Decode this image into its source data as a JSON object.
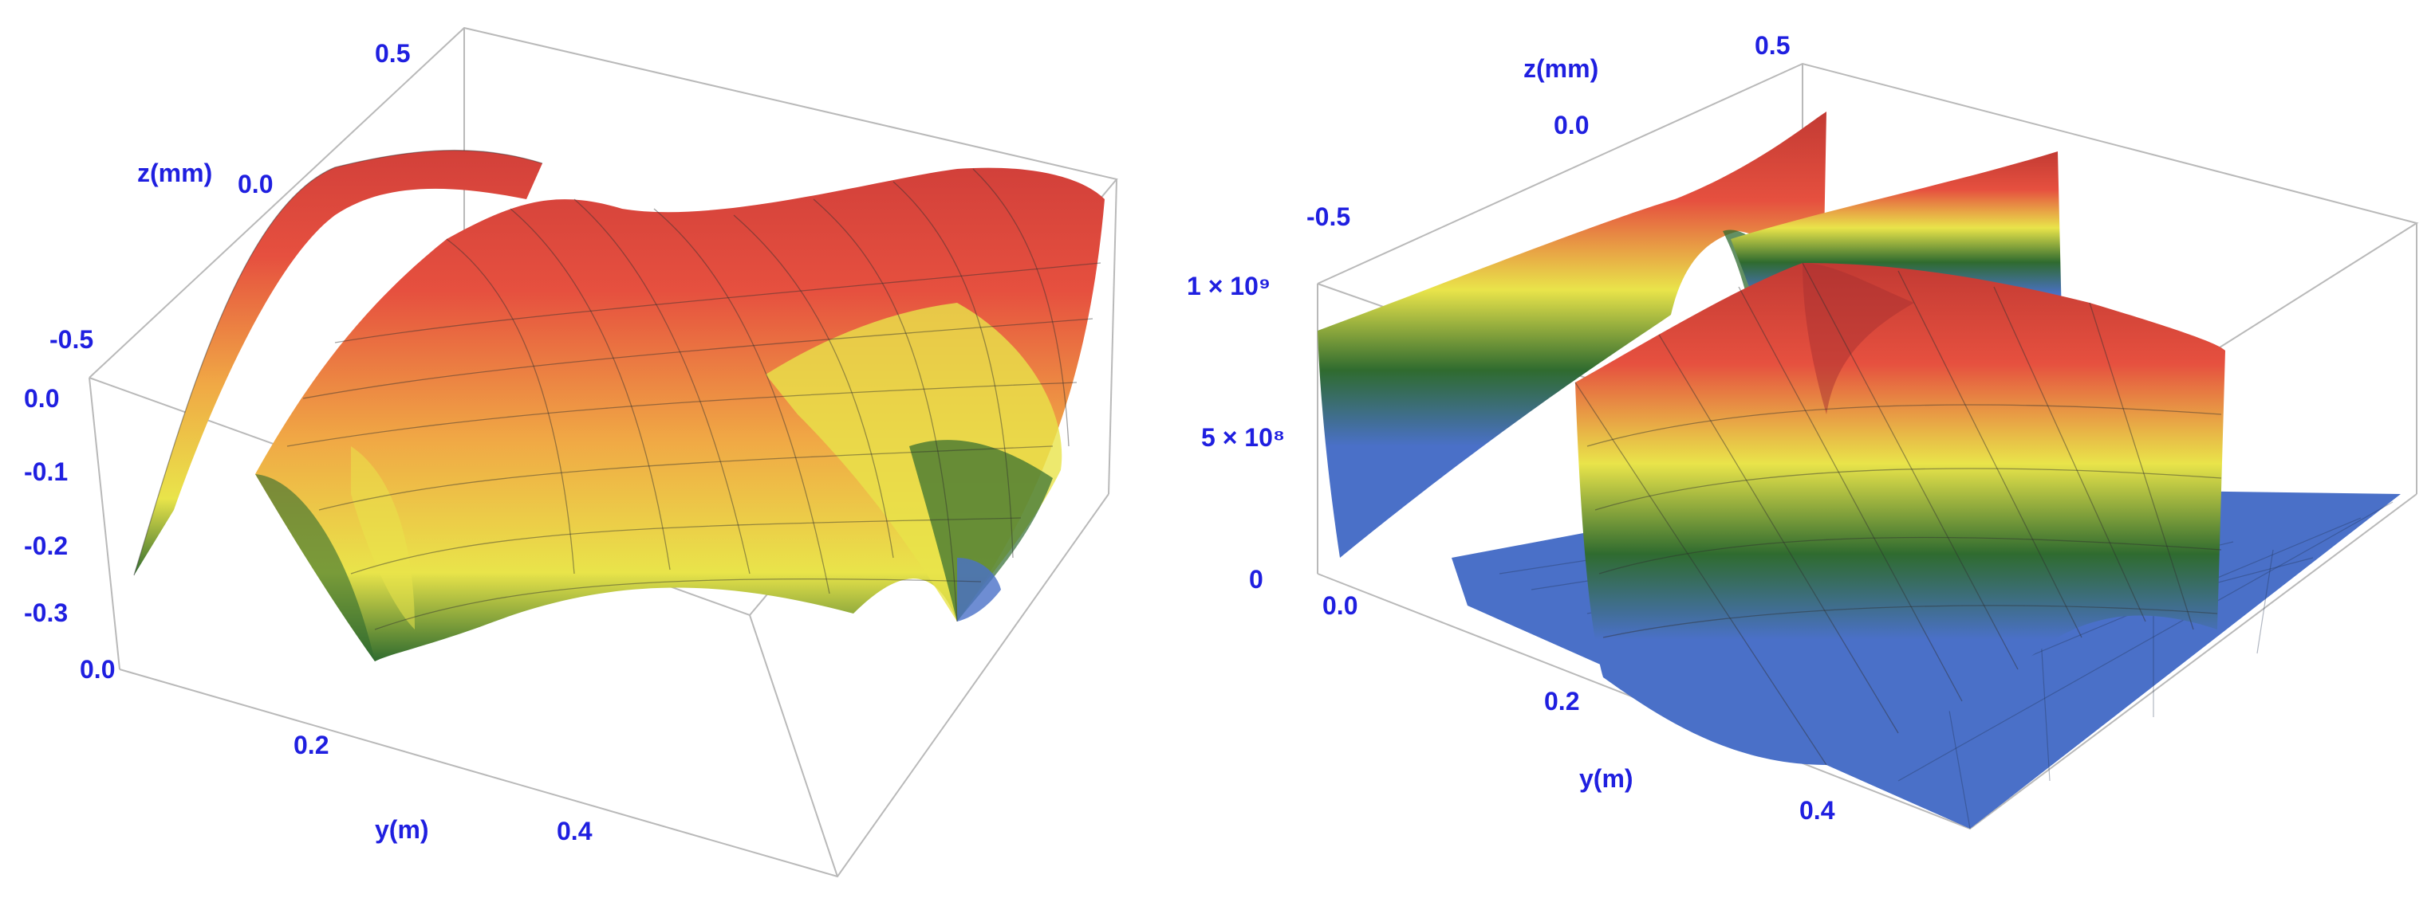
{
  "chart_data": [
    {
      "type": "surface",
      "panel": "left",
      "zlabel": "z(mm)",
      "ylabel": "y(m)",
      "xlabel": "",
      "z_ticks_back": [
        "0.5",
        "0.0",
        "-0.5"
      ],
      "z_ticks_front": [
        "0.0",
        "-0.1",
        "-0.2",
        "-0.3"
      ],
      "y_ticks": [
        "0.0",
        "0.2",
        "0.4"
      ],
      "z_range_back": [
        -0.5,
        0.5
      ],
      "z_range_front": [
        -0.3,
        0.0
      ],
      "y_range": [
        0.0,
        0.6
      ],
      "colormap": [
        "#4a70c8",
        "#2f6b2f",
        "#e9e44a",
        "#f0b040",
        "#e24a3c",
        "#c23a33"
      ],
      "grid": false
    },
    {
      "type": "surface",
      "panel": "right",
      "zlabel": "z(mm)",
      "ylabel": "y(m)",
      "xlabel": "",
      "z_ticks_back": [
        "0.5",
        "0.0",
        "-0.5"
      ],
      "value_ticks": [
        "1 × 10⁹",
        "5 × 10⁸",
        "0"
      ],
      "value_range": [
        0,
        1000000000
      ],
      "y_ticks": [
        "0.0",
        "0.2",
        "0.4"
      ],
      "y_range": [
        0.0,
        0.6
      ],
      "colormap": [
        "#4a70c8",
        "#2f6b2f",
        "#e9e44a",
        "#f0b040",
        "#e24a3c",
        "#c23a33"
      ],
      "grid": false
    }
  ]
}
